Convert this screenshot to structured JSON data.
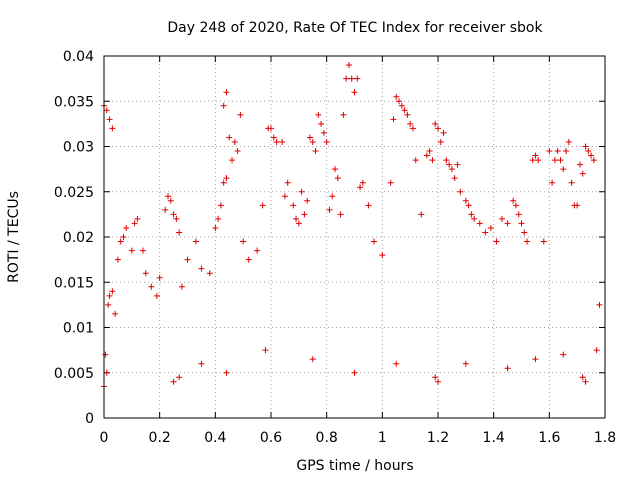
{
  "chart_data": {
    "type": "scatter",
    "title": "Day 248 of 2020, Rate Of TEC Index for receiver sbok",
    "xlabel": "GPS time / hours",
    "ylabel": "ROTI / TECUs",
    "xlim": [
      0,
      1.8
    ],
    "ylim": [
      0,
      0.04
    ],
    "x_ticks": [
      "0",
      "0.2",
      "0.4",
      "0.6",
      "0.8",
      "1",
      "1.2",
      "1.4",
      "1.6",
      "1.8"
    ],
    "y_ticks": [
      "0",
      "0.005",
      "0.01",
      "0.015",
      "0.02",
      "0.025",
      "0.03",
      "0.035",
      "0.04"
    ],
    "grid": true,
    "marker": "plus",
    "colors": {
      "points": "#e00000",
      "grid": "#a0a0a0"
    },
    "series": [
      {
        "points": [
          [
            0.0,
            0.0345
          ],
          [
            0.01,
            0.034
          ],
          [
            0.02,
            0.033
          ],
          [
            0.03,
            0.032
          ],
          [
            0.0,
            0.0035
          ],
          [
            0.01,
            0.005
          ],
          [
            0.005,
            0.007
          ],
          [
            0.015,
            0.0125
          ],
          [
            0.02,
            0.0135
          ],
          [
            0.03,
            0.014
          ],
          [
            0.04,
            0.0115
          ],
          [
            0.05,
            0.0175
          ],
          [
            0.06,
            0.0195
          ],
          [
            0.07,
            0.02
          ],
          [
            0.08,
            0.021
          ],
          [
            0.1,
            0.0185
          ],
          [
            0.11,
            0.0215
          ],
          [
            0.12,
            0.022
          ],
          [
            0.14,
            0.0185
          ],
          [
            0.15,
            0.016
          ],
          [
            0.17,
            0.0145
          ],
          [
            0.19,
            0.0135
          ],
          [
            0.2,
            0.0155
          ],
          [
            0.22,
            0.023
          ],
          [
            0.23,
            0.0245
          ],
          [
            0.24,
            0.024
          ],
          [
            0.25,
            0.0225
          ],
          [
            0.26,
            0.022
          ],
          [
            0.27,
            0.0205
          ],
          [
            0.28,
            0.0145
          ],
          [
            0.3,
            0.0175
          ],
          [
            0.33,
            0.0195
          ],
          [
            0.35,
            0.0165
          ],
          [
            0.38,
            0.016
          ],
          [
            0.4,
            0.021
          ],
          [
            0.41,
            0.022
          ],
          [
            0.42,
            0.0235
          ],
          [
            0.43,
            0.0345
          ],
          [
            0.44,
            0.036
          ],
          [
            0.45,
            0.031
          ],
          [
            0.46,
            0.0285
          ],
          [
            0.47,
            0.0305
          ],
          [
            0.48,
            0.0295
          ],
          [
            0.49,
            0.0335
          ],
          [
            0.43,
            0.026
          ],
          [
            0.44,
            0.0265
          ],
          [
            0.5,
            0.0195
          ],
          [
            0.52,
            0.0175
          ],
          [
            0.55,
            0.0185
          ],
          [
            0.57,
            0.0235
          ],
          [
            0.59,
            0.032
          ],
          [
            0.6,
            0.032
          ],
          [
            0.61,
            0.031
          ],
          [
            0.62,
            0.0305
          ],
          [
            0.64,
            0.0305
          ],
          [
            0.65,
            0.0245
          ],
          [
            0.66,
            0.026
          ],
          [
            0.68,
            0.0235
          ],
          [
            0.69,
            0.022
          ],
          [
            0.7,
            0.0215
          ],
          [
            0.71,
            0.025
          ],
          [
            0.72,
            0.0225
          ],
          [
            0.73,
            0.024
          ],
          [
            0.74,
            0.031
          ],
          [
            0.75,
            0.0305
          ],
          [
            0.76,
            0.0295
          ],
          [
            0.77,
            0.0335
          ],
          [
            0.78,
            0.0325
          ],
          [
            0.79,
            0.0315
          ],
          [
            0.8,
            0.0305
          ],
          [
            0.81,
            0.023
          ],
          [
            0.82,
            0.0245
          ],
          [
            0.83,
            0.0275
          ],
          [
            0.84,
            0.0265
          ],
          [
            0.85,
            0.0225
          ],
          [
            0.86,
            0.0335
          ],
          [
            0.87,
            0.0375
          ],
          [
            0.88,
            0.039
          ],
          [
            0.89,
            0.0375
          ],
          [
            0.9,
            0.036
          ],
          [
            0.91,
            0.0375
          ],
          [
            0.92,
            0.0255
          ],
          [
            0.93,
            0.026
          ],
          [
            0.95,
            0.0235
          ],
          [
            0.97,
            0.0195
          ],
          [
            1.0,
            0.018
          ],
          [
            1.03,
            0.026
          ],
          [
            1.04,
            0.033
          ],
          [
            1.05,
            0.0355
          ],
          [
            1.06,
            0.035
          ],
          [
            1.07,
            0.0345
          ],
          [
            1.08,
            0.034
          ],
          [
            1.09,
            0.0335
          ],
          [
            1.1,
            0.0325
          ],
          [
            1.11,
            0.032
          ],
          [
            1.12,
            0.0285
          ],
          [
            1.14,
            0.0225
          ],
          [
            1.16,
            0.029
          ],
          [
            1.17,
            0.0295
          ],
          [
            1.18,
            0.0285
          ],
          [
            1.19,
            0.0325
          ],
          [
            1.2,
            0.032
          ],
          [
            1.21,
            0.0305
          ],
          [
            1.22,
            0.0315
          ],
          [
            1.23,
            0.0285
          ],
          [
            1.24,
            0.028
          ],
          [
            1.25,
            0.0275
          ],
          [
            1.26,
            0.0265
          ],
          [
            1.27,
            0.028
          ],
          [
            1.28,
            0.025
          ],
          [
            1.3,
            0.024
          ],
          [
            1.31,
            0.0235
          ],
          [
            1.32,
            0.0225
          ],
          [
            1.33,
            0.022
          ],
          [
            1.35,
            0.0215
          ],
          [
            1.37,
            0.0205
          ],
          [
            1.39,
            0.021
          ],
          [
            1.41,
            0.0195
          ],
          [
            1.43,
            0.022
          ],
          [
            1.45,
            0.0215
          ],
          [
            1.47,
            0.024
          ],
          [
            1.48,
            0.0235
          ],
          [
            1.49,
            0.0225
          ],
          [
            1.5,
            0.0215
          ],
          [
            1.51,
            0.0205
          ],
          [
            1.52,
            0.0195
          ],
          [
            1.54,
            0.0285
          ],
          [
            1.55,
            0.029
          ],
          [
            1.56,
            0.0285
          ],
          [
            1.58,
            0.0195
          ],
          [
            1.6,
            0.0295
          ],
          [
            1.61,
            0.026
          ],
          [
            1.62,
            0.0285
          ],
          [
            1.63,
            0.0295
          ],
          [
            1.64,
            0.0285
          ],
          [
            1.65,
            0.0275
          ],
          [
            1.66,
            0.0295
          ],
          [
            1.67,
            0.0305
          ],
          [
            1.68,
            0.026
          ],
          [
            1.69,
            0.0235
          ],
          [
            1.7,
            0.0235
          ],
          [
            1.71,
            0.028
          ],
          [
            1.72,
            0.027
          ],
          [
            1.73,
            0.03
          ],
          [
            1.74,
            0.0295
          ],
          [
            1.75,
            0.029
          ],
          [
            1.76,
            0.0285
          ],
          [
            1.78,
            0.0125
          ],
          [
            1.77,
            0.0075
          ],
          [
            1.72,
            0.0045
          ],
          [
            1.73,
            0.004
          ],
          [
            1.19,
            0.0045
          ],
          [
            1.2,
            0.004
          ],
          [
            0.25,
            0.004
          ],
          [
            0.27,
            0.0045
          ],
          [
            0.35,
            0.006
          ],
          [
            0.44,
            0.005
          ],
          [
            0.58,
            0.0075
          ],
          [
            0.75,
            0.0065
          ],
          [
            0.9,
            0.005
          ],
          [
            1.05,
            0.006
          ],
          [
            1.3,
            0.006
          ],
          [
            1.45,
            0.0055
          ],
          [
            1.55,
            0.0065
          ],
          [
            1.65,
            0.007
          ]
        ]
      }
    ]
  }
}
